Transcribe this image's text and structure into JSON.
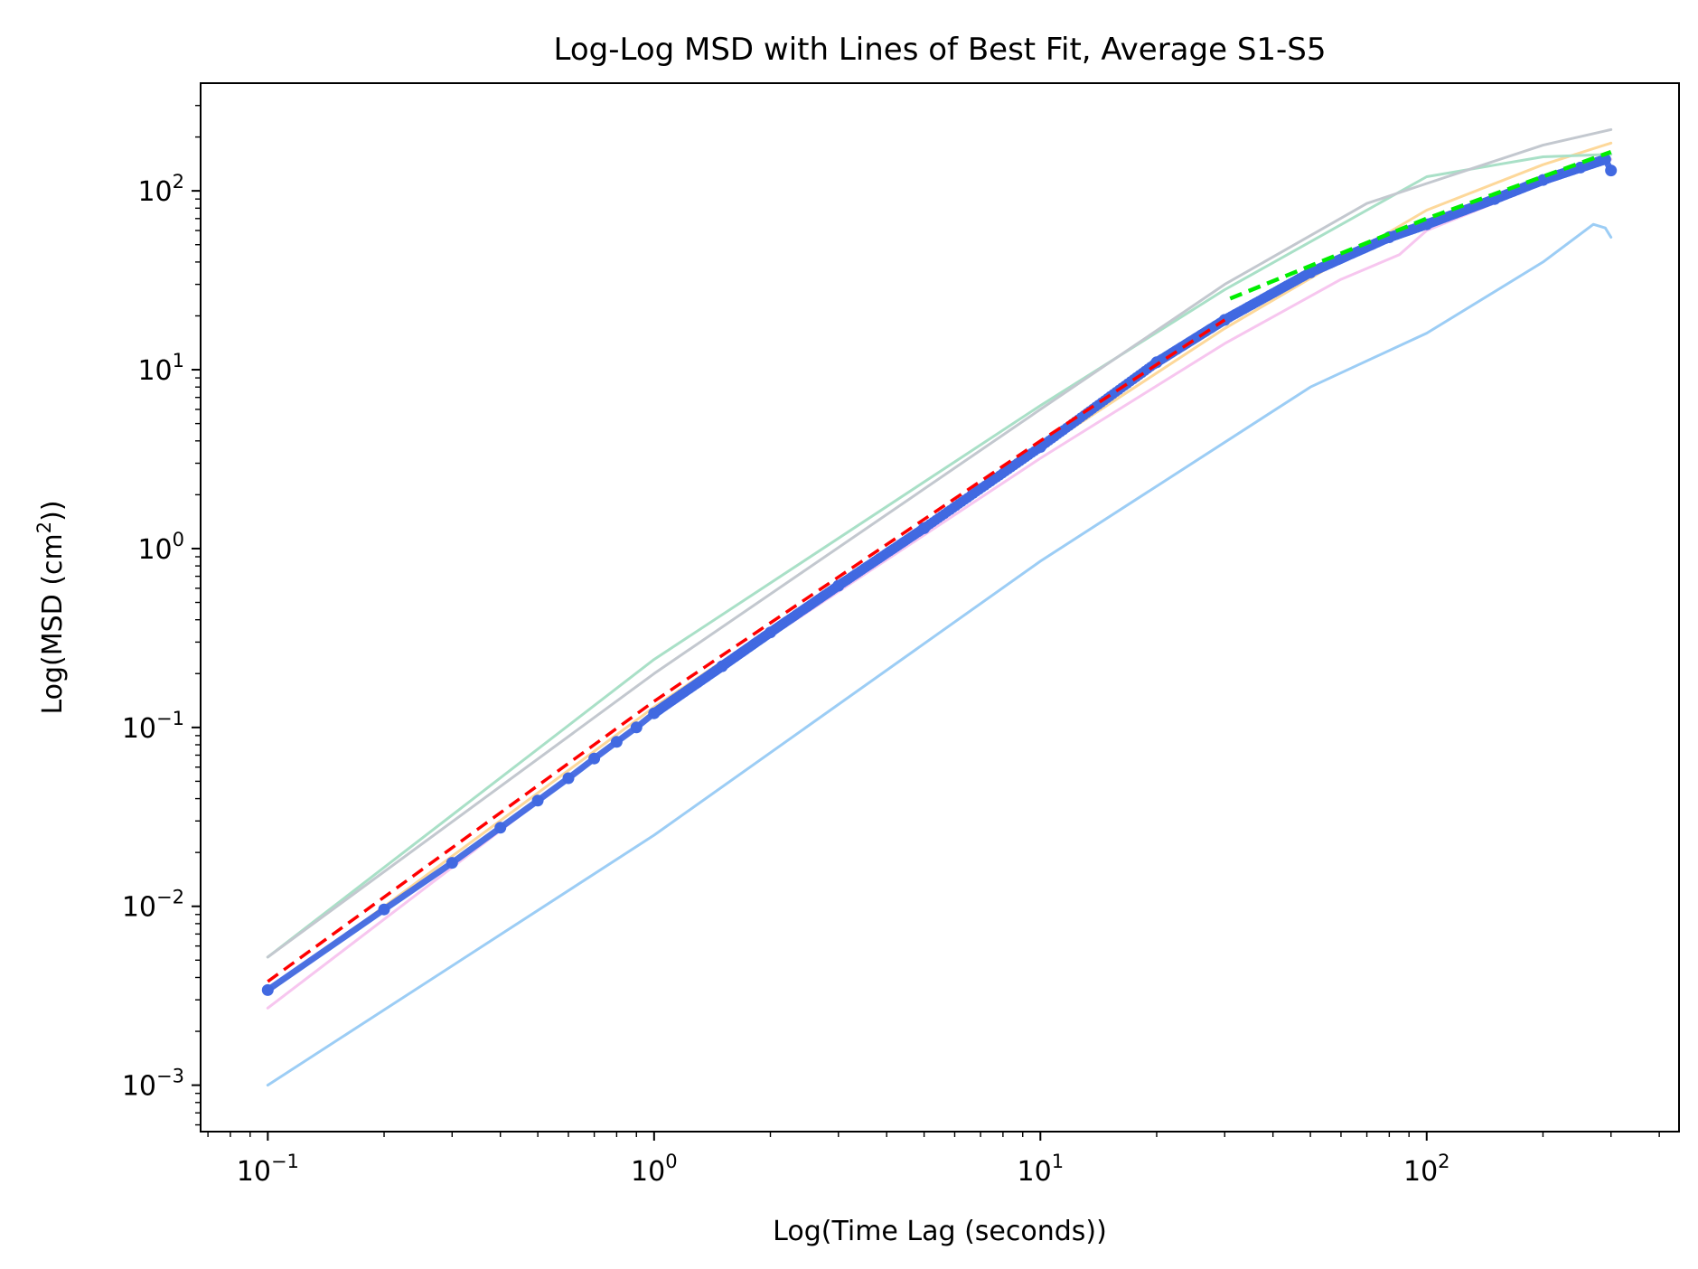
{
  "chart_data": {
    "type": "line",
    "title": "Log-Log MSD with Lines of Best Fit, Average S1-S5",
    "xlabel": "Log(Time Lag (seconds))",
    "ylabel": "Log(MSD (cm",
    "ylabel_sup": "2",
    "ylabel_suffix": "))",
    "xscale": "log",
    "yscale": "log",
    "xlim": [
      0.067,
      450
    ],
    "ylim": [
      0.00055,
      400
    ],
    "grid": false,
    "legend": "none",
    "x_ticks": [
      {
        "value": 0.1,
        "base": "10",
        "exp": "−1"
      },
      {
        "value": 1,
        "base": "10",
        "exp": "0"
      },
      {
        "value": 10,
        "base": "10",
        "exp": "1"
      },
      {
        "value": 100,
        "base": "10",
        "exp": "2"
      }
    ],
    "y_ticks": [
      {
        "value": 0.001,
        "base": "10",
        "exp": "−3"
      },
      {
        "value": 0.01,
        "base": "10",
        "exp": "−2"
      },
      {
        "value": 0.1,
        "base": "10",
        "exp": "−1"
      },
      {
        "value": 1,
        "base": "10",
        "exp": "0"
      },
      {
        "value": 10,
        "base": "10",
        "exp": "1"
      },
      {
        "value": 100,
        "base": "10",
        "exp": "2"
      }
    ],
    "series": [
      {
        "color": "#f7c6ef",
        "style": "solid",
        "width": 3,
        "points": [
          [
            0.1,
            0.0027
          ],
          [
            1,
            0.12
          ],
          [
            10,
            3.2
          ],
          [
            30,
            14
          ],
          [
            60,
            32
          ],
          [
            85,
            44
          ],
          [
            100,
            60
          ],
          [
            200,
            110
          ],
          [
            300,
            150
          ]
        ]
      },
      {
        "color": "#fdd89a",
        "style": "solid",
        "width": 3,
        "points": [
          [
            0.1,
            0.0033
          ],
          [
            1,
            0.13
          ],
          [
            10,
            3.6
          ],
          [
            30,
            17
          ],
          [
            100,
            78
          ],
          [
            200,
            140
          ],
          [
            300,
            185
          ]
        ]
      },
      {
        "color": "#a9e0c7",
        "style": "solid",
        "width": 3,
        "points": [
          [
            0.1,
            0.0052
          ],
          [
            1,
            0.24
          ],
          [
            10,
            6.3
          ],
          [
            30,
            28
          ],
          [
            100,
            120
          ],
          [
            200,
            155
          ],
          [
            300,
            160
          ]
        ]
      },
      {
        "color": "#c3c8cf",
        "style": "solid",
        "width": 3,
        "points": [
          [
            0.1,
            0.0052
          ],
          [
            1,
            0.2
          ],
          [
            10,
            6
          ],
          [
            30,
            30
          ],
          [
            70,
            85
          ],
          [
            100,
            110
          ],
          [
            200,
            180
          ],
          [
            300,
            220
          ]
        ]
      },
      {
        "color": "#9ccdf5",
        "style": "solid",
        "width": 3,
        "points": [
          [
            0.1,
            0.001
          ],
          [
            1,
            0.025
          ],
          [
            10,
            0.85
          ],
          [
            50,
            8
          ],
          [
            100,
            16
          ],
          [
            200,
            40
          ],
          [
            270,
            65
          ],
          [
            290,
            62
          ],
          [
            300,
            55
          ]
        ]
      },
      {
        "color": "#4169e1",
        "style": "dotted-markers",
        "width": 7,
        "points": [
          [
            0.1,
            0.0034
          ],
          [
            0.2,
            0.0096
          ],
          [
            0.3,
            0.0175
          ],
          [
            0.4,
            0.0275
          ],
          [
            0.5,
            0.039
          ],
          [
            0.6,
            0.052
          ],
          [
            0.7,
            0.067
          ],
          [
            0.8,
            0.083
          ],
          [
            0.9,
            0.1
          ],
          [
            1,
            0.12
          ],
          [
            1.5,
            0.22
          ],
          [
            2,
            0.34
          ],
          [
            3,
            0.62
          ],
          [
            5,
            1.3
          ],
          [
            10,
            3.7
          ],
          [
            20,
            11
          ],
          [
            30,
            19
          ],
          [
            50,
            35
          ],
          [
            80,
            55
          ],
          [
            100,
            65
          ],
          [
            150,
            90
          ],
          [
            200,
            115
          ],
          [
            250,
            135
          ],
          [
            290,
            150
          ],
          [
            300,
            130
          ]
        ]
      },
      {
        "color": "#ff0000",
        "style": "dashed",
        "width": 3.5,
        "points": [
          [
            0.1,
            0.0038
          ],
          [
            1,
            0.14
          ],
          [
            10,
            4
          ],
          [
            30,
            19
          ]
        ]
      },
      {
        "color": "#00ee00",
        "style": "dashed",
        "width": 4.5,
        "points": [
          [
            31,
            25
          ],
          [
            100,
            70
          ],
          [
            300,
            165
          ]
        ]
      }
    ]
  }
}
